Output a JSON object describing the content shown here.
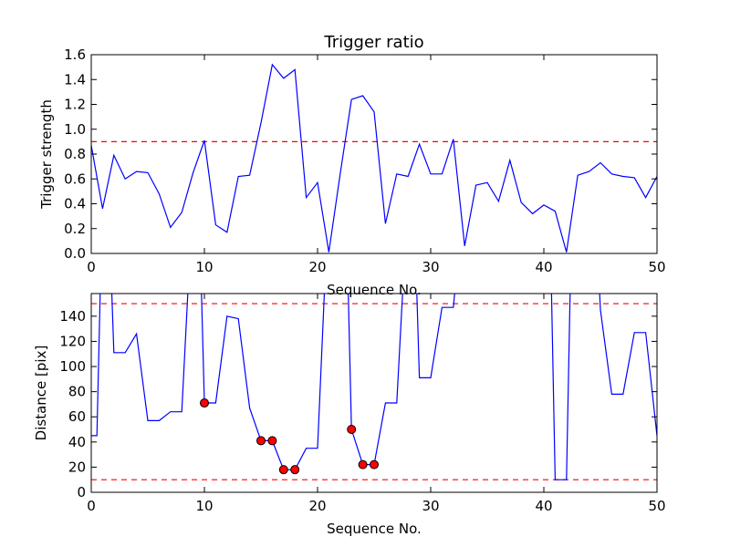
{
  "chart_data": [
    {
      "type": "line",
      "title": "Trigger ratio",
      "xlabel": "Sequence No.",
      "ylabel": "Trigger strength",
      "xlim": [
        0,
        50
      ],
      "ylim": [
        0,
        1.6
      ],
      "xticks": [
        "0",
        "10",
        "20",
        "30",
        "40",
        "50"
      ],
      "yticks": [
        "0.0",
        "0.2",
        "0.4",
        "0.6",
        "0.8",
        "1.0",
        "1.2",
        "1.4",
        "1.6"
      ],
      "grid": false,
      "colors": {
        "line": "#0000ff",
        "threshold": "#ff0000"
      },
      "threshold": 0.9,
      "x": [
        0,
        1,
        2,
        3,
        4,
        5,
        6,
        7,
        8,
        9,
        10,
        11,
        12,
        13,
        14,
        15,
        16,
        17,
        18,
        19,
        20,
        21,
        22,
        23,
        24,
        25,
        26,
        27,
        28,
        29,
        30,
        31,
        32,
        33,
        34,
        35,
        36,
        37,
        38,
        39,
        40,
        41,
        42,
        43,
        44,
        45,
        46,
        47,
        48,
        49,
        50
      ],
      "y": [
        0.87,
        0.36,
        0.79,
        0.6,
        0.66,
        0.65,
        0.48,
        0.21,
        0.33,
        0.65,
        0.91,
        0.23,
        0.17,
        0.62,
        0.63,
        1.05,
        1.52,
        1.41,
        1.48,
        0.45,
        0.57,
        0.01,
        0.64,
        1.24,
        1.27,
        1.14,
        0.24,
        0.64,
        0.62,
        0.88,
        0.64,
        0.64,
        0.92,
        0.06,
        0.55,
        0.57,
        0.42,
        0.75,
        0.41,
        0.32,
        0.39,
        0.34,
        0.01,
        0.63,
        0.66,
        0.73,
        0.64,
        0.62,
        0.61,
        0.45,
        0.62
      ]
    },
    {
      "type": "line",
      "title": "",
      "xlabel": "Sequence No.",
      "ylabel": "Distance [pix]",
      "xlim": [
        0,
        50
      ],
      "ylim": [
        0,
        158
      ],
      "xticks": [
        "0",
        "10",
        "20",
        "30",
        "40",
        "50"
      ],
      "yticks": [
        "0",
        "20",
        "40",
        "60",
        "80",
        "100",
        "120",
        "140"
      ],
      "grid": false,
      "colors": {
        "line": "#0000ff",
        "threshold": "#ff0000",
        "marker": "#ff0000"
      },
      "thresholds": [
        10,
        150
      ],
      "steps": [
        [
          0,
          45
        ],
        [
          0.5,
          45
        ],
        [
          1,
          240
        ],
        [
          1.5,
          240
        ],
        [
          2,
          111
        ],
        [
          3,
          111
        ],
        [
          4,
          126
        ],
        [
          5,
          57
        ],
        [
          6,
          57
        ],
        [
          7,
          64
        ],
        [
          8,
          64
        ],
        [
          9,
          240
        ],
        [
          9.5,
          240
        ],
        [
          10,
          71
        ],
        [
          11,
          71
        ],
        [
          12,
          140
        ],
        [
          13,
          138
        ],
        [
          14,
          67
        ],
        [
          15,
          41
        ],
        [
          16,
          41
        ],
        [
          17,
          18
        ],
        [
          18,
          18
        ],
        [
          19,
          35
        ],
        [
          20,
          35
        ],
        [
          21,
          240
        ],
        [
          22.5,
          240
        ],
        [
          23,
          50
        ],
        [
          24,
          22
        ],
        [
          25,
          22
        ],
        [
          26,
          71
        ],
        [
          27,
          71
        ],
        [
          28,
          240
        ],
        [
          28.5,
          240
        ],
        [
          29,
          91
        ],
        [
          30,
          91
        ],
        [
          31,
          147
        ],
        [
          32,
          147
        ],
        [
          33,
          240
        ],
        [
          40.5,
          240
        ],
        [
          41,
          10
        ],
        [
          42,
          10
        ],
        [
          42.5,
          240
        ],
        [
          44.5,
          240
        ],
        [
          45,
          145
        ],
        [
          46,
          78
        ],
        [
          47,
          78
        ],
        [
          48,
          127
        ],
        [
          49,
          127
        ],
        [
          50,
          45
        ]
      ],
      "markers": [
        [
          10,
          71
        ],
        [
          15,
          41
        ],
        [
          16,
          41
        ],
        [
          17,
          18
        ],
        [
          18,
          18
        ],
        [
          23,
          50
        ],
        [
          24,
          22
        ],
        [
          25,
          22
        ]
      ]
    }
  ]
}
